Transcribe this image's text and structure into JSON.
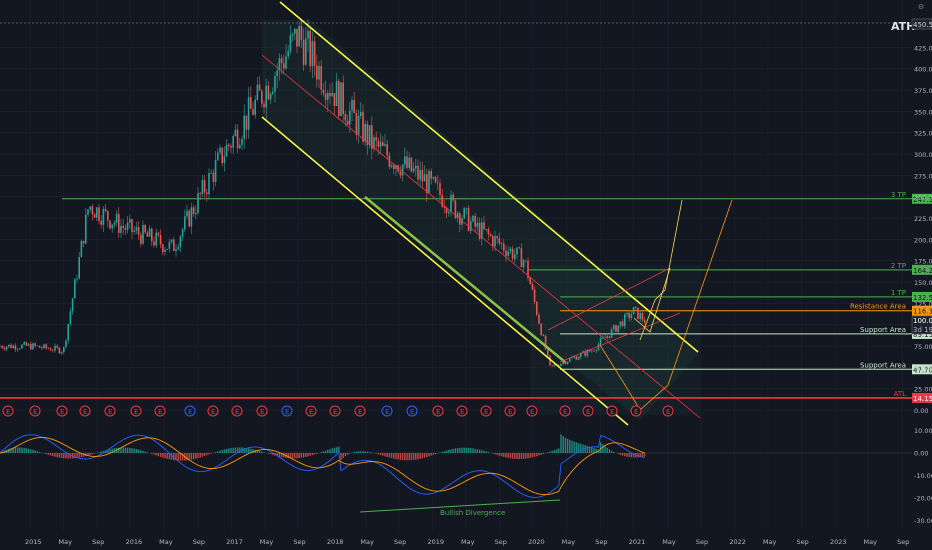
{
  "header": {
    "ath_label": "ATH",
    "ath_value": "450.55"
  },
  "price_axis": {
    "ticks": [
      "425.00",
      "400.00",
      "375.00",
      "350.00",
      "325.00",
      "300.00",
      "275.00",
      "250.00",
      "225.00",
      "200.00",
      "175.00",
      "150.00",
      "125.00",
      "100.00",
      "75.00",
      "50.00",
      "25.00",
      "0.00"
    ]
  },
  "macd_axis": {
    "ticks": [
      "10.00",
      "0.00",
      "-10.00",
      "-20.00",
      "-30.00"
    ]
  },
  "time_axis": {
    "labels": [
      "2015",
      "May",
      "Sep",
      "2016",
      "May",
      "Sep",
      "2017",
      "May",
      "Sep",
      "2018",
      "May",
      "Sep",
      "2019",
      "May",
      "Sep",
      "2020",
      "May",
      "Sep",
      "2021",
      "May",
      "Sep",
      "2022",
      "May",
      "Sep",
      "2023",
      "May",
      "Sep"
    ]
  },
  "levels": [
    {
      "key": "tp3",
      "tag": "3 TP",
      "value": "247.50",
      "color": "#4caf50",
      "price": 247.5
    },
    {
      "key": "tp2",
      "tag": "2 TP",
      "value": "164.25",
      "color": "#4caf50",
      "price": 164.25
    },
    {
      "key": "tp1",
      "tag": "1 TP",
      "value": "132.50",
      "color": "#4caf50",
      "price": 132.5
    },
    {
      "key": "res",
      "tag": "Resistance Area",
      "value": "116.35",
      "color": "#ff9800",
      "price": 116.35
    },
    {
      "key": "sup1",
      "tag": "Support Area",
      "value": "89.15",
      "color": "#c8e6c9",
      "price": 89.15
    },
    {
      "key": "sup2",
      "tag": "Support Area",
      "value": "47.70",
      "color": "#c8e6c9",
      "price": 47.7
    },
    {
      "key": "atl",
      "tag": "ATL",
      "value": "14.15",
      "color": "#f23645",
      "price": 14.15
    }
  ],
  "last_price": {
    "value": "100.05",
    "countdown": "3d 19h"
  },
  "annotations": {
    "bullish_divergence": "Bullish Divergence"
  },
  "chart_data": {
    "type": "candlestick",
    "x": [
      "2015",
      "2016",
      "2017",
      "2018",
      "2019",
      "2020",
      "2021"
    ],
    "approx_prices": [
      {
        "date": "2015-01",
        "price": 75
      },
      {
        "date": "2015-05",
        "price": 70
      },
      {
        "date": "2015-08",
        "price": 240
      },
      {
        "date": "2015-12",
        "price": 215
      },
      {
        "date": "2016-06",
        "price": 190
      },
      {
        "date": "2016-12",
        "price": 300
      },
      {
        "date": "2017-04",
        "price": 360
      },
      {
        "date": "2017-09",
        "price": 440
      },
      {
        "date": "2017-12",
        "price": 390
      },
      {
        "date": "2018-06",
        "price": 310
      },
      {
        "date": "2018-12",
        "price": 270
      },
      {
        "date": "2019-06",
        "price": 215
      },
      {
        "date": "2019-12",
        "price": 175
      },
      {
        "date": "2020-03",
        "price": 50
      },
      {
        "date": "2020-08",
        "price": 70
      },
      {
        "date": "2021-01",
        "price": 116
      },
      {
        "date": "2021-03",
        "price": 100
      }
    ],
    "price_levels": [
      247.5,
      164.25,
      132.5,
      116.35,
      100.05,
      89.15,
      47.7,
      14.15
    ],
    "all_time_high": 450.55,
    "ylim": [
      0,
      450
    ]
  }
}
